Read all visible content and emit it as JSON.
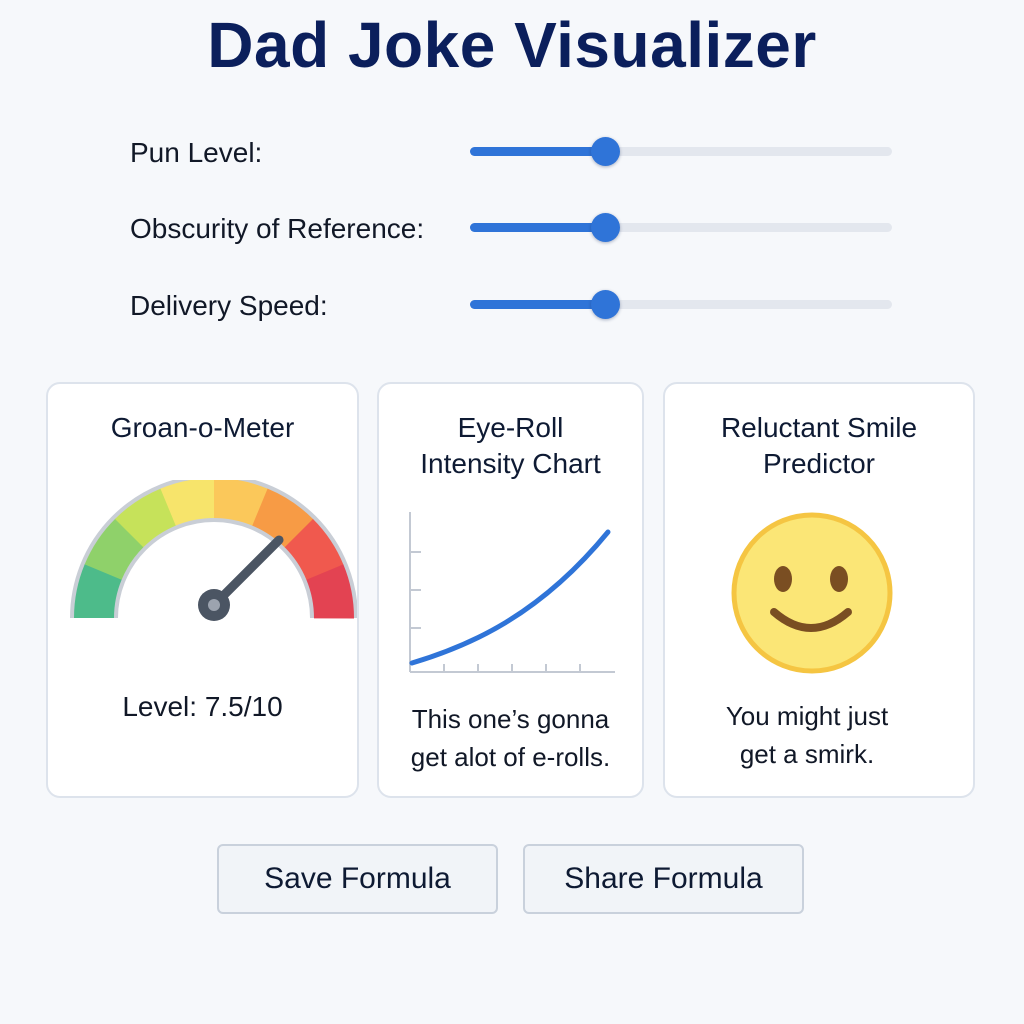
{
  "title": "Dad Joke Visualizer",
  "sliders": [
    {
      "label": "Pun Level:",
      "value_fraction": 0.32
    },
    {
      "label": "Obscurity of Reference:",
      "value_fraction": 0.32
    },
    {
      "label": "Delivery Speed:",
      "value_fraction": 0.32
    }
  ],
  "cards": {
    "groan": {
      "title": "Groan-o-Meter",
      "level_text": "Level: 7.5/10",
      "level_value": 7.5,
      "level_max": 10,
      "colors": [
        "#4dbb8a",
        "#8fd16a",
        "#c6e25a",
        "#f7e46b",
        "#fbc85a",
        "#f79b45",
        "#f0594e",
        "#e34352"
      ]
    },
    "eyeroll": {
      "title_line1": "Eye-Roll",
      "title_line2": "Intensity Chart",
      "caption_line1": "This one’s gonna",
      "caption_line2": "get alot of e-rolls.",
      "curve_color": "#2f74d8"
    },
    "smile": {
      "title_line1": "Reluctant Smile",
      "title_line2": "Predictor",
      "face_icon": "smiley-face-icon",
      "caption_line1": "You might just",
      "caption_line2": "get a smirk."
    }
  },
  "buttons": {
    "save_label": "Save Formula",
    "share_label": "Share Formula"
  },
  "colors": {
    "accent": "#2f74d8",
    "title": "#0b1f5c"
  }
}
